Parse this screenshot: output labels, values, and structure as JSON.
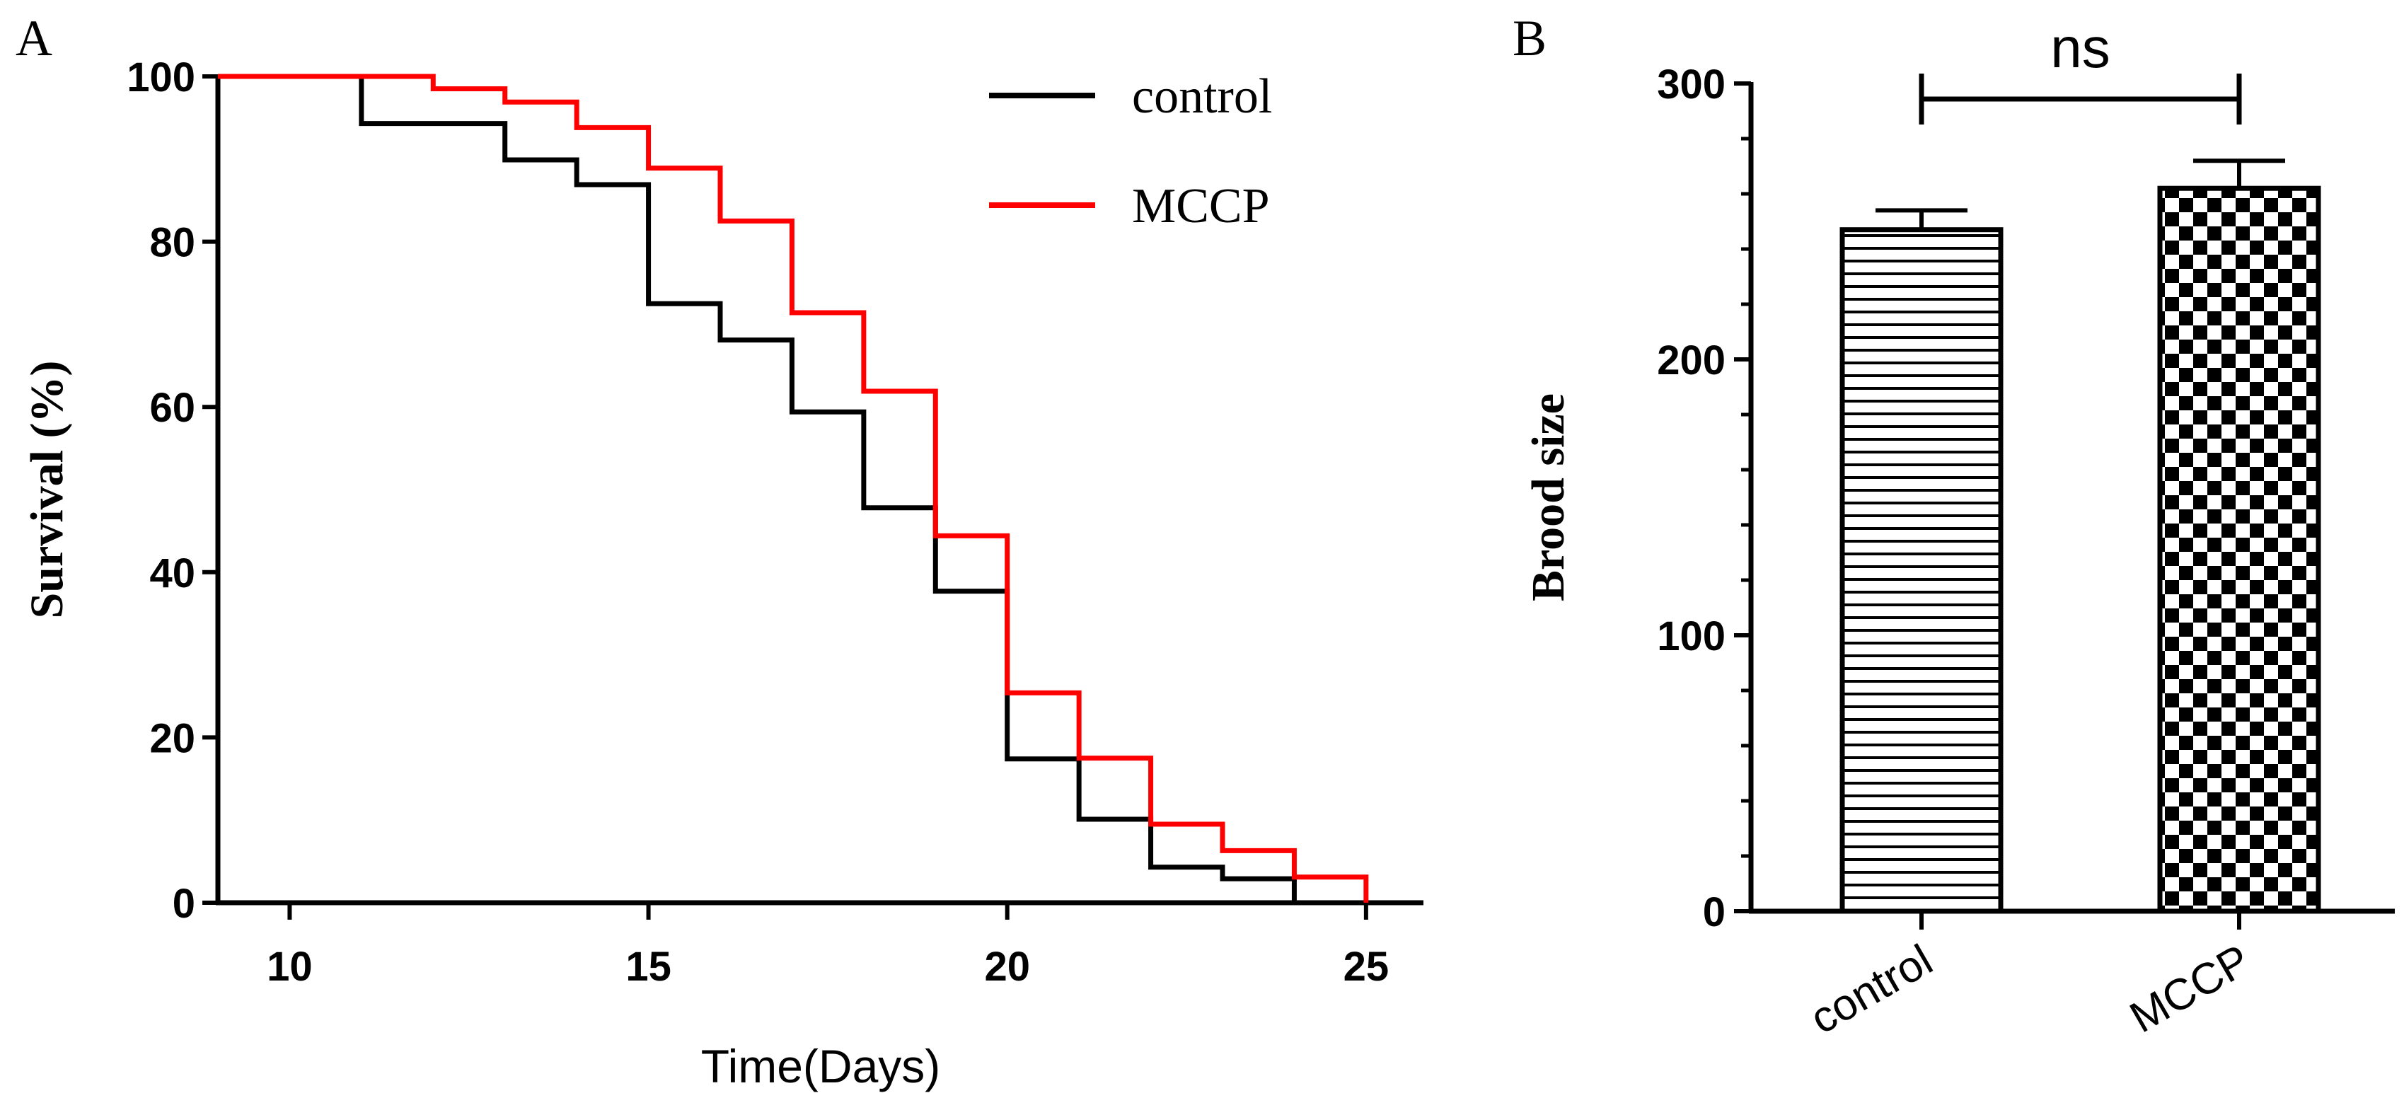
{
  "chart_data": [
    {
      "panel": "A",
      "type": "line",
      "subtype": "step",
      "xlabel": "Time(Days)",
      "ylabel": "Survival (%)",
      "xlim": [
        9,
        25.8
      ],
      "ylim": [
        0,
        100
      ],
      "xticks": [
        10,
        15,
        20,
        25
      ],
      "yticks": [
        0,
        20,
        40,
        60,
        80,
        100
      ],
      "legend_position": "top-right",
      "series": [
        {
          "name": "control",
          "color": "#000000",
          "steps": [
            [
              9,
              100
            ],
            [
              11,
              94.3
            ],
            [
              13,
              89.9
            ],
            [
              14,
              86.9
            ],
            [
              15,
              72.5
            ],
            [
              16,
              68.1
            ],
            [
              17,
              59.4
            ],
            [
              18,
              47.8
            ],
            [
              19,
              37.7
            ],
            [
              20,
              17.4
            ],
            [
              21,
              10.1
            ],
            [
              22,
              4.3
            ],
            [
              23,
              2.9
            ],
            [
              24,
              0
            ]
          ]
        },
        {
          "name": "MCCP",
          "color": "#ff0000",
          "steps": [
            [
              9,
              100
            ],
            [
              12,
              98.5
            ],
            [
              13,
              96.9
            ],
            [
              14,
              93.8
            ],
            [
              15,
              88.9
            ],
            [
              16,
              82.5
            ],
            [
              17,
              71.4
            ],
            [
              18,
              61.9
            ],
            [
              19,
              44.4
            ],
            [
              20,
              25.4
            ],
            [
              21,
              17.5
            ],
            [
              22,
              9.5
            ],
            [
              23,
              6.3
            ],
            [
              24,
              3.1
            ],
            [
              25,
              0
            ]
          ]
        }
      ]
    },
    {
      "panel": "B",
      "type": "bar",
      "ylabel": "Brood size",
      "xlabel": "",
      "ylim": [
        0,
        300
      ],
      "yticks": [
        0,
        100,
        200,
        300
      ],
      "categories": [
        "control",
        "MCCP"
      ],
      "values": [
        247,
        262
      ],
      "errors": [
        7,
        10
      ],
      "patterns": [
        "horizontal-stripes",
        "checkerboard"
      ],
      "significance": {
        "label": "ns",
        "between": [
          "control",
          "MCCP"
        ]
      }
    }
  ],
  "labels": {
    "panel_a": "A",
    "panel_b": "B"
  }
}
